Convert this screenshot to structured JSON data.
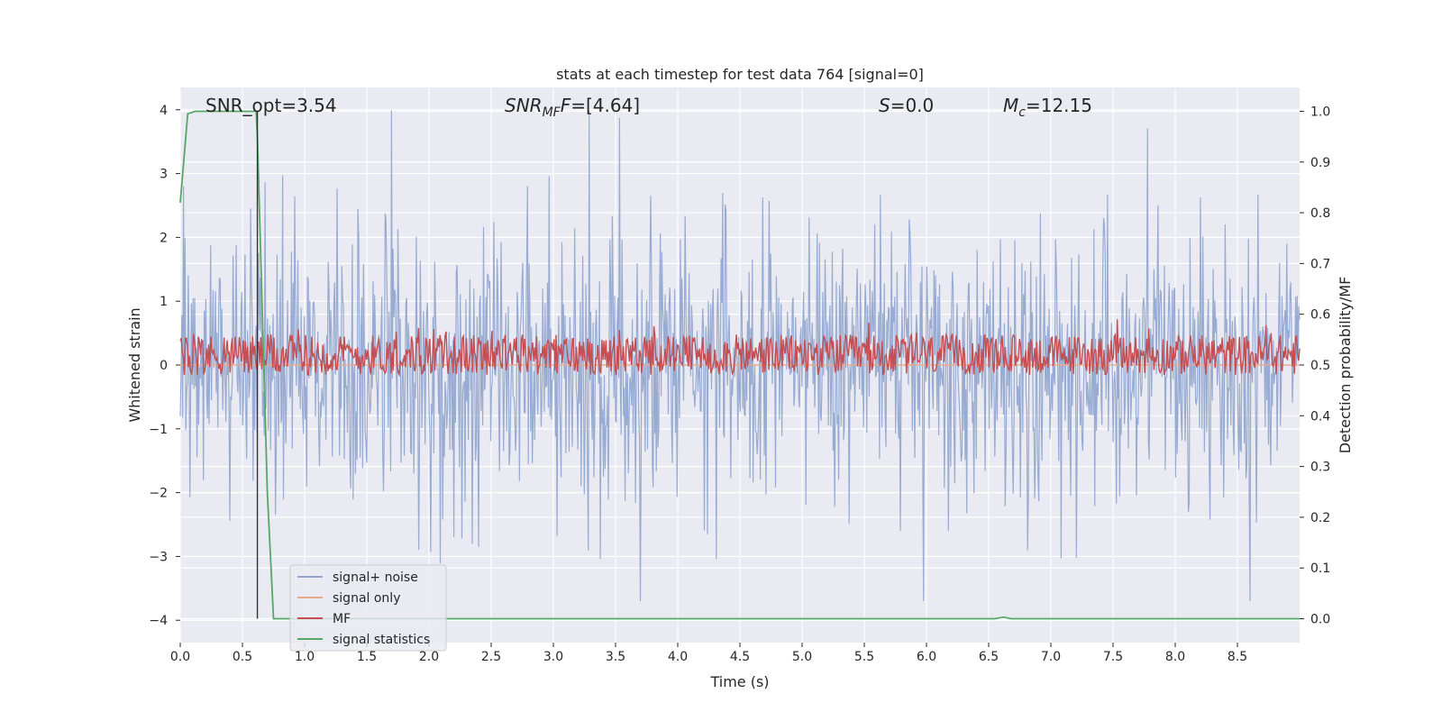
{
  "chart_data": {
    "type": "line",
    "title": "stats at each timestep for test data 764 [signal=0]",
    "xlabel": "Time (s)",
    "ylabel": "Whitened strain",
    "y2label": "Detection probability/MF",
    "xlim": [
      0.0,
      9.0
    ],
    "ylim": [
      -4.35,
      4.35
    ],
    "y2lim": [
      -0.047,
      1.047
    ],
    "xticks": [
      0.0,
      0.5,
      1.0,
      1.5,
      2.0,
      2.5,
      3.0,
      3.5,
      4.0,
      4.5,
      5.0,
      5.5,
      6.0,
      6.5,
      7.0,
      7.5,
      8.0,
      8.5
    ],
    "xtick_labels": [
      "0.0",
      "0.5",
      "1.0",
      "1.5",
      "2.0",
      "2.5",
      "3.0",
      "3.5",
      "4.0",
      "4.5",
      "5.0",
      "5.5",
      "6.0",
      "6.5",
      "7.0",
      "7.5",
      "8.0",
      "8.5"
    ],
    "yticks": [
      -4,
      -3,
      -2,
      -1,
      0,
      1,
      2,
      3,
      4
    ],
    "ytick_labels": [
      "−4",
      "−3",
      "−2",
      "−1",
      "0",
      "1",
      "2",
      "3",
      "4"
    ],
    "y2ticks": [
      0.0,
      0.1,
      0.2,
      0.3,
      0.4,
      0.5,
      0.6,
      0.7,
      0.8,
      0.9,
      1.0
    ],
    "y2tick_labels": [
      "0.0",
      "0.1",
      "0.2",
      "0.3",
      "0.4",
      "0.5",
      "0.6",
      "0.7",
      "0.8",
      "0.9",
      "1.0"
    ],
    "grid": true,
    "legend_position": "lower-left",
    "annotations": {
      "snr_opt": "SNR_opt=3.54",
      "snr_mf_main": "SNR",
      "snr_mf_sub": "MF",
      "snr_mf_rest": "=[4.64]",
      "s": "=0.0",
      "s_symbol": "S",
      "mc_symbol": "M",
      "mc_sub": "c",
      "mc_value": "=12.15"
    },
    "vline_x": 0.62,
    "series": [
      {
        "name": "signal+ noise",
        "color": "#92a8d1",
        "axis": "left",
        "kind": "noise",
        "x_range": [
          0.0,
          9.0
        ],
        "envelope_upper": 2.5,
        "envelope_lower": -2.5,
        "peak_max": 3.99,
        "peak_min": -3.7
      },
      {
        "name": "signal only",
        "color": "#e8a98c",
        "axis": "left",
        "kind": "flat",
        "value": 0.0
      },
      {
        "name": "MF",
        "color": "#c44e52",
        "axis": "right",
        "kind": "noise",
        "center": 0.52,
        "spread": 0.04,
        "peak_max": 0.6
      },
      {
        "name": "signal statistics",
        "color": "#55a868",
        "axis": "right",
        "kind": "curve",
        "x": [
          0.0,
          0.06,
          0.12,
          0.2,
          0.3,
          0.5,
          0.61,
          0.62,
          0.66,
          0.7,
          0.75,
          0.8,
          2.0,
          4.0,
          6.0,
          6.55,
          6.62,
          6.68,
          7.0,
          9.0
        ],
        "y": [
          0.82,
          0.995,
          1.0,
          1.0,
          1.0,
          1.0,
          1.0,
          0.95,
          0.6,
          0.25,
          0.0,
          0.0,
          0.0,
          0.0,
          0.0,
          0.0,
          0.003,
          0.0,
          0.0,
          0.0
        ]
      }
    ]
  }
}
